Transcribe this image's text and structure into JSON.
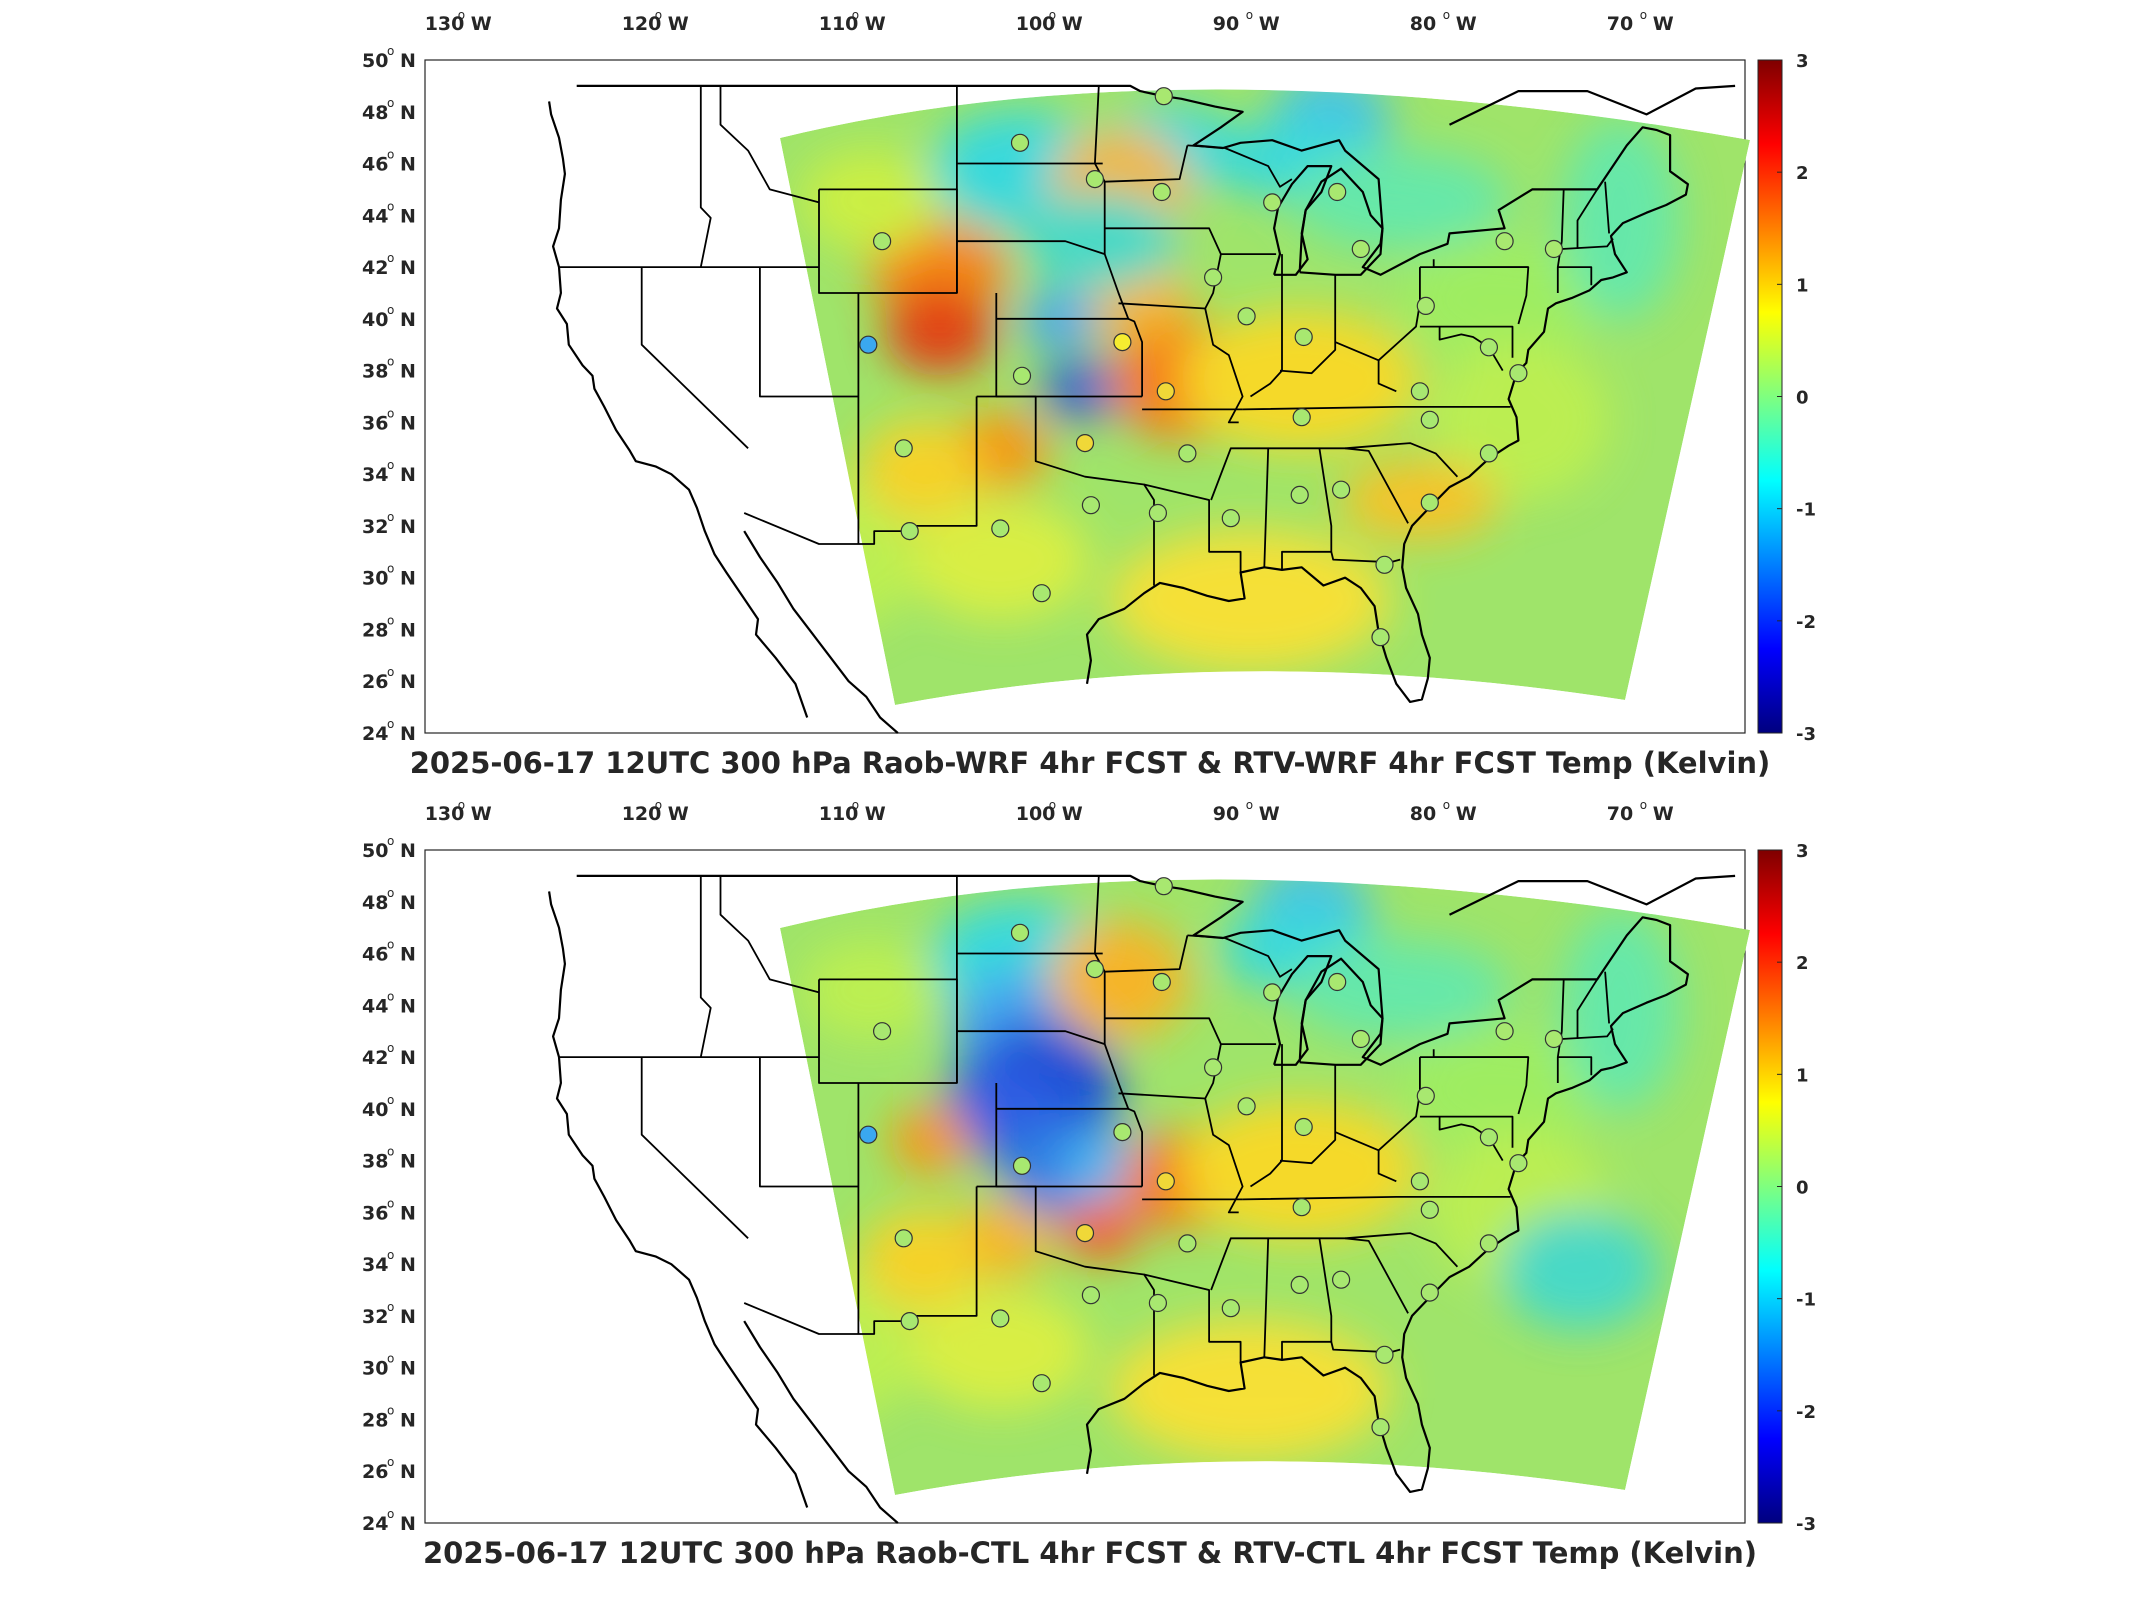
{
  "panels": [
    {
      "title": "2025-06-17 12UTC 300 hPa Raob-WRF 4hr FCST & RTV-WRF 4hr FCST Temp (Kelvin)",
      "variant": "wrf"
    },
    {
      "title": "2025-06-17 12UTC 300 hPa Raob-CTL 4hr FCST & RTV-CTL 4hr FCST Temp (Kelvin)",
      "variant": "ctl"
    }
  ],
  "lon_labels": [
    "130",
    "120",
    "110",
    "100",
    "90",
    "80",
    "70"
  ],
  "lon_suffix": "W",
  "lat_labels": [
    "50",
    "48",
    "46",
    "44",
    "42",
    "40",
    "38",
    "36",
    "34",
    "32",
    "30",
    "28",
    "26",
    "24"
  ],
  "lat_suffix": "N",
  "colorbar": {
    "ticks": [
      "3",
      "2",
      "1",
      "0",
      "-1",
      "-2",
      "-3"
    ],
    "colors": [
      "#7f0000",
      "#ff0000",
      "#ff7f00",
      "#ffff00",
      "#7fff7f",
      "#00ffff",
      "#007fff",
      "#0000ff",
      "#00007f"
    ]
  },
  "colors": {
    "field_base": "#9fe46a",
    "outline": "#000000",
    "station_stroke": "#333333"
  },
  "stations": [
    {
      "lon": -93.5,
      "lat": 48.6
    },
    {
      "lon": -100.8,
      "lat": 46.8
    },
    {
      "lon": -97.0,
      "lat": 45.4
    },
    {
      "lon": -93.6,
      "lat": 44.9
    },
    {
      "lon": -88.0,
      "lat": 44.5
    },
    {
      "lon": -84.7,
      "lat": 44.9
    },
    {
      "lon": -107.8,
      "lat": 43.0
    },
    {
      "lon": -83.5,
      "lat": 42.7
    },
    {
      "lon": -76.2,
      "lat": 43.0
    },
    {
      "lon": -73.7,
      "lat": 42.7
    },
    {
      "lon": -91.0,
      "lat": 41.6
    },
    {
      "lon": -89.3,
      "lat": 40.1
    },
    {
      "lon": -80.2,
      "lat": 40.5
    },
    {
      "lon": -86.4,
      "lat": 39.3
    },
    {
      "lon": -108.5,
      "lat": 39.0
    },
    {
      "lon": -95.6,
      "lat": 39.1
    },
    {
      "lon": -100.7,
      "lat": 37.8
    },
    {
      "lon": -93.4,
      "lat": 37.2
    },
    {
      "lon": -86.5,
      "lat": 36.2
    },
    {
      "lon": -80.5,
      "lat": 37.2
    },
    {
      "lon": -80.0,
      "lat": 36.1
    },
    {
      "lon": -77.0,
      "lat": 38.9
    },
    {
      "lon": -75.5,
      "lat": 37.9
    },
    {
      "lon": -106.7,
      "lat": 35.0
    },
    {
      "lon": -97.5,
      "lat": 35.2
    },
    {
      "lon": -92.3,
      "lat": 34.8
    },
    {
      "lon": -77.0,
      "lat": 34.8
    },
    {
      "lon": -97.2,
      "lat": 32.8
    },
    {
      "lon": -93.8,
      "lat": 32.5
    },
    {
      "lon": -90.1,
      "lat": 32.3
    },
    {
      "lon": -86.6,
      "lat": 33.2
    },
    {
      "lon": -84.5,
      "lat": 33.4
    },
    {
      "lon": -80.0,
      "lat": 32.9
    },
    {
      "lon": -106.4,
      "lat": 31.8
    },
    {
      "lon": -101.8,
      "lat": 31.9
    },
    {
      "lon": -99.7,
      "lat": 29.4
    },
    {
      "lon": -82.3,
      "lat": 30.5
    },
    {
      "lon": -82.5,
      "lat": 27.7
    }
  ]
}
